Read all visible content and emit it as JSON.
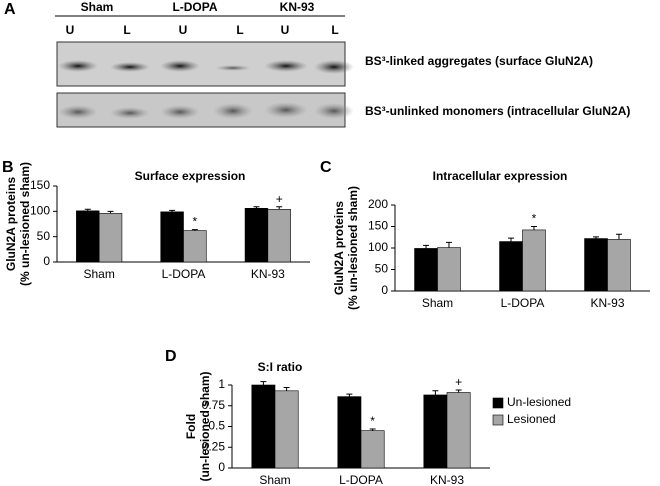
{
  "blot": {
    "panel": "A",
    "groups": [
      "Sham",
      "L-DOPA",
      "KN-93"
    ],
    "lanes": [
      "U",
      "L",
      "U",
      "L",
      "U",
      "L"
    ],
    "rows": [
      "BS³-linked aggregates (surface GluN2A)",
      "BS³-unlinked monomers (intracellular GluN2A)"
    ]
  },
  "chart_data": [
    {
      "type": "bar",
      "panel": "B",
      "title": "Surface expression",
      "y_label": [
        "GluN2A proteins",
        "(% un-lesioned sham)"
      ],
      "categories": [
        "Sham",
        "L-DOPA",
        "KN-93"
      ],
      "series": [
        {
          "color": "#000000",
          "values": [
            101,
            99,
            106
          ],
          "errors": [
            3,
            3,
            3
          ]
        },
        {
          "color": "#a6a6a6",
          "values": [
            96,
            62,
            104
          ],
          "errors": [
            4,
            2,
            5
          ],
          "significance": [
            null,
            "*",
            "+"
          ]
        }
      ],
      "ylim": [
        0,
        150
      ],
      "yticks": [
        0,
        50,
        100,
        150
      ]
    },
    {
      "type": "bar",
      "panel": "C",
      "title": "Intracellular expression",
      "y_label": [
        "GluN2A proteins",
        "(% un-lesioned sham)"
      ],
      "categories": [
        "Sham",
        "L-DOPA",
        "KN-93"
      ],
      "series": [
        {
          "color": "#000000",
          "values": [
            99,
            115,
            122
          ],
          "errors": [
            7,
            8,
            4
          ]
        },
        {
          "color": "#a6a6a6",
          "values": [
            101,
            142,
            120
          ],
          "errors": [
            12,
            8,
            12
          ],
          "significance": [
            null,
            "*",
            null
          ]
        }
      ],
      "ylim": [
        0,
        200
      ],
      "yticks": [
        0,
        50,
        100,
        150,
        200
      ]
    },
    {
      "type": "bar",
      "panel": "D",
      "title": "S:I ratio",
      "y_label": [
        "Fold",
        "(un-lesioned sham)"
      ],
      "categories": [
        "Sham",
        "L-DOPA",
        "KN-93"
      ],
      "series": [
        {
          "name": "Un-lesioned",
          "color": "#000000",
          "values": [
            1.0,
            0.86,
            0.88
          ],
          "errors": [
            0.04,
            0.03,
            0.05
          ]
        },
        {
          "name": "Lesioned",
          "color": "#a6a6a6",
          "values": [
            0.93,
            0.45,
            0.91
          ],
          "errors": [
            0.04,
            0.02,
            0.03
          ],
          "significance": [
            null,
            "*",
            "+"
          ]
        }
      ],
      "ylim": [
        0,
        1
      ],
      "yticks": [
        0,
        0.25,
        0.5,
        0.75,
        1
      ],
      "legend": "right"
    }
  ]
}
